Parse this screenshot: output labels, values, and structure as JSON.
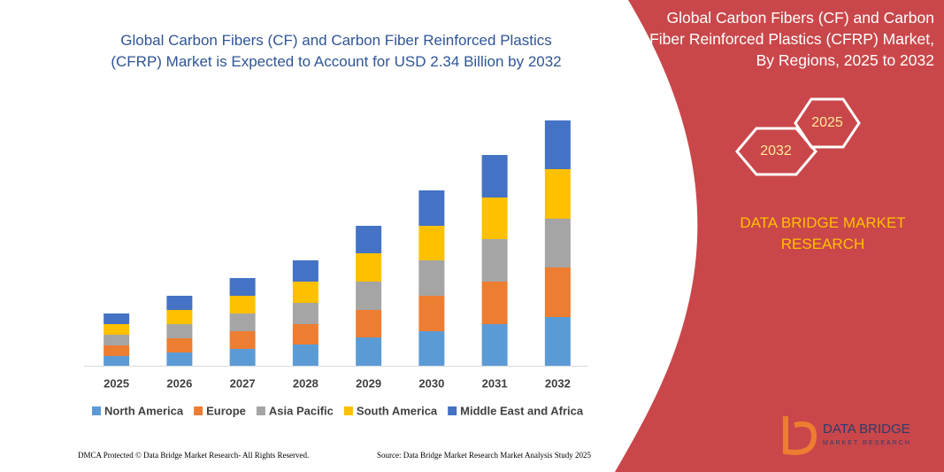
{
  "chart_data": {
    "type": "stacked_bar",
    "title": "Global Carbon Fibers (CF) and Carbon Fiber Reinforced Plastics (CFRP) Market is Expected to Account for USD 2.34 Billion by 2032",
    "categories": [
      "2025",
      "2026",
      "2027",
      "2028",
      "2029",
      "2030",
      "2031",
      "2032"
    ],
    "series": [
      {
        "name": "North America",
        "color": "#5b9bd5",
        "values": [
          11,
          15,
          19,
          24,
          32,
          39,
          47,
          55
        ]
      },
      {
        "name": "Europe",
        "color": "#ed7d31",
        "values": [
          12,
          16,
          20,
          23,
          31,
          40,
          48,
          56
        ]
      },
      {
        "name": "Asia Pacific",
        "color": "#a5a5a5",
        "values": [
          12,
          16,
          20,
          24,
          32,
          40,
          48,
          55
        ]
      },
      {
        "name": "South America",
        "color": "#ffc000",
        "values": [
          12,
          16,
          20,
          24,
          32,
          39,
          47,
          56
        ]
      },
      {
        "name": "Middle East and Africa",
        "color": "#4472c4",
        "values": [
          12,
          16,
          20,
          24,
          31,
          40,
          48,
          55
        ]
      }
    ],
    "ylim": [
      0,
      280
    ]
  },
  "panel": {
    "title": "Global Carbon Fibers (CF) and Carbon Fiber Reinforced Plastics (CFRP) Market, By Regions, 2025 to 2032",
    "hex_start": "2025",
    "hex_end": "2032",
    "brand": "DATA BRIDGE MARKET RESEARCH",
    "logo_name": "DATA BRIDGE",
    "logo_sub": "MARKET RESEARCH"
  },
  "footer": {
    "left": "DMCA Protected © Data Bridge Market Research- All Rights Reserved.",
    "right": "Source: Data Bridge Market Research Market Analysis Study 2025"
  }
}
